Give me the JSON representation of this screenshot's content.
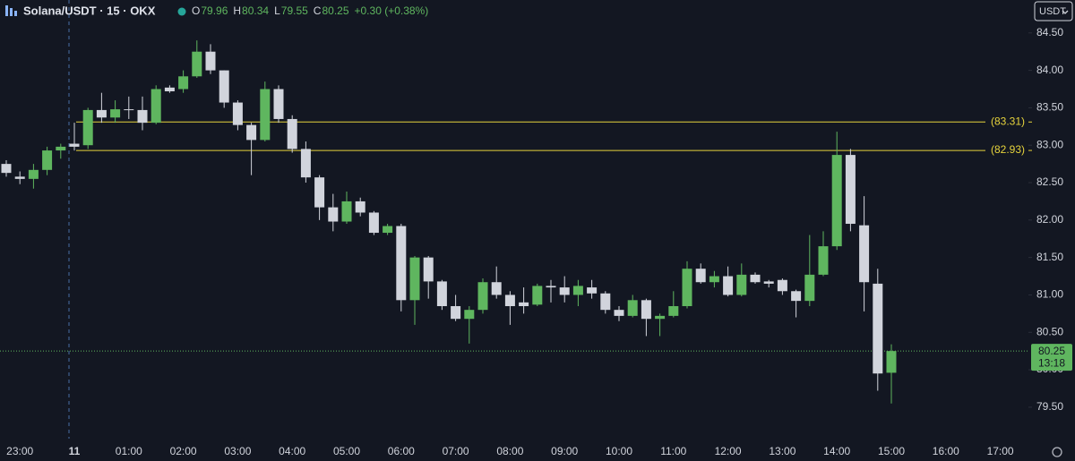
{
  "chart_data": {
    "type": "candlestick",
    "title": "Solana/USDT · 15 · OKX",
    "ohlc_header": [
      {
        "key": "O",
        "value": "79.96"
      },
      {
        "key": "H",
        "value": "80.34"
      },
      {
        "key": "L",
        "value": "79.55"
      },
      {
        "key": "C",
        "value": "80.25"
      }
    ],
    "change_text": "+0.30 (+0.38%)",
    "currency": "USDT",
    "categories": [
      null,
      "23:00",
      null,
      null,
      null,
      "11",
      null,
      null,
      null,
      "01:00",
      null,
      null,
      null,
      "02:00",
      null,
      null,
      null,
      "03:00",
      null,
      null,
      null,
      "04:00",
      null,
      null,
      null,
      "05:00",
      null,
      null,
      null,
      "06:00",
      null,
      null,
      null,
      "07:00",
      null,
      null,
      null,
      "08:00",
      null,
      null,
      null,
      "09:00",
      null,
      null,
      null,
      "10:00",
      null,
      null,
      null,
      "11:00",
      null,
      null,
      null,
      "12:00",
      null,
      null,
      null,
      "13:00",
      null,
      null,
      null,
      "14:00",
      null,
      null,
      null,
      "15:00",
      null,
      null,
      null,
      "16:00",
      null,
      null,
      null,
      "17:00"
    ],
    "open": [
      82.75,
      82.58,
      82.55,
      82.67,
      82.93,
      83.02,
      83.0,
      83.47,
      83.37,
      83.48,
      83.47,
      83.3,
      83.77,
      83.75,
      83.92,
      84.25,
      84.0,
      83.57,
      83.27,
      83.07,
      83.75,
      83.35,
      82.95,
      82.57,
      82.17,
      81.98,
      82.25,
      82.1,
      81.83,
      81.92,
      80.93,
      81.5,
      81.18,
      80.85,
      80.68,
      80.8,
      81.17,
      81.0,
      80.9,
      80.87,
      81.12,
      81.1,
      81.0,
      81.1,
      81.02,
      80.8,
      80.72,
      80.93,
      80.68,
      80.72,
      80.85,
      81.35,
      81.17,
      81.25,
      81.0,
      81.27,
      81.18,
      81.2,
      81.05,
      80.92,
      81.27,
      81.65,
      82.87,
      81.93,
      81.15,
      79.96,
      null,
      null,
      null,
      null,
      null,
      null,
      null,
      null
    ],
    "high": [
      82.8,
      82.65,
      82.75,
      82.98,
      83.02,
      83.3,
      83.5,
      83.7,
      83.6,
      83.65,
      83.65,
      83.8,
      83.8,
      84.0,
      84.4,
      84.35,
      84.0,
      83.6,
      83.3,
      83.85,
      83.8,
      83.4,
      83.05,
      82.6,
      82.35,
      82.38,
      82.3,
      82.12,
      81.95,
      81.95,
      81.52,
      81.52,
      81.2,
      81.0,
      80.85,
      81.22,
      81.38,
      81.05,
      81.1,
      81.15,
      81.2,
      81.25,
      81.2,
      81.2,
      81.05,
      80.85,
      81.0,
      80.95,
      80.75,
      81.05,
      81.45,
      81.42,
      81.32,
      81.38,
      81.42,
      81.3,
      81.2,
      81.22,
      81.07,
      81.8,
      81.85,
      83.18,
      82.95,
      82.32,
      81.35,
      80.34,
      null,
      null,
      null,
      null,
      null,
      null,
      null,
      null
    ],
    "low": [
      82.58,
      82.48,
      82.42,
      82.6,
      82.82,
      82.93,
      82.95,
      83.3,
      83.3,
      83.35,
      83.2,
      83.28,
      83.7,
      83.7,
      83.9,
      83.95,
      83.5,
      83.2,
      82.6,
      83.05,
      83.3,
      82.9,
      82.5,
      82.0,
      81.85,
      81.95,
      82.05,
      81.8,
      81.8,
      80.78,
      80.6,
      80.95,
      80.8,
      80.65,
      80.35,
      80.75,
      80.95,
      80.6,
      80.75,
      80.85,
      80.9,
      80.9,
      80.85,
      80.95,
      80.75,
      80.65,
      80.7,
      80.45,
      80.45,
      80.7,
      80.82,
      81.15,
      81.1,
      80.98,
      80.98,
      81.15,
      81.1,
      81.0,
      80.7,
      80.85,
      81.25,
      81.6,
      81.85,
      80.78,
      79.72,
      79.55,
      null,
      null,
      null,
      null,
      null,
      null,
      null,
      null
    ],
    "close": [
      82.63,
      82.55,
      82.67,
      82.93,
      82.98,
      82.98,
      83.47,
      83.37,
      83.48,
      83.47,
      83.3,
      83.75,
      83.72,
      83.92,
      84.25,
      84.0,
      83.57,
      83.27,
      83.07,
      83.75,
      83.35,
      82.95,
      82.57,
      82.17,
      81.98,
      82.25,
      82.1,
      81.83,
      81.92,
      80.93,
      81.5,
      81.18,
      80.85,
      80.68,
      80.8,
      81.17,
      81.0,
      80.85,
      80.85,
      81.12,
      81.1,
      81.0,
      81.12,
      81.02,
      80.8,
      80.72,
      80.93,
      80.68,
      80.72,
      80.85,
      81.35,
      81.17,
      81.25,
      81.0,
      81.27,
      81.17,
      81.15,
      81.05,
      80.92,
      81.27,
      81.65,
      82.87,
      81.95,
      81.17,
      79.95,
      80.25,
      null,
      null,
      null,
      null,
      null,
      null,
      null,
      null
    ],
    "up_color": "#5fb65f",
    "down_color": "#d1d4dc",
    "ylim": [
      79.08,
      84.94
    ],
    "yticks": [
      {
        "value": 79.5,
        "label": "79.50"
      },
      {
        "value": 80,
        "label": "80.00"
      },
      {
        "value": 80.5,
        "label": "80.50"
      },
      {
        "value": 81,
        "label": "81.00"
      },
      {
        "value": 81.5,
        "label": "81.50"
      },
      {
        "value": 82,
        "label": "82.00"
      },
      {
        "value": 82.5,
        "label": "82.50"
      },
      {
        "value": 83,
        "label": "83.00"
      },
      {
        "value": 83.5,
        "label": "83.50"
      },
      {
        "value": 84,
        "label": "84.00"
      },
      {
        "value": 84.5,
        "label": "84.50"
      }
    ],
    "levels": [
      {
        "value": 83.31,
        "label": "(83.31)",
        "color": "#e6d33c"
      },
      {
        "value": 82.93,
        "label": "(82.93)",
        "color": "#e6d33c"
      }
    ],
    "last_price": 80.25,
    "countdown": "13:18",
    "grid": false
  }
}
